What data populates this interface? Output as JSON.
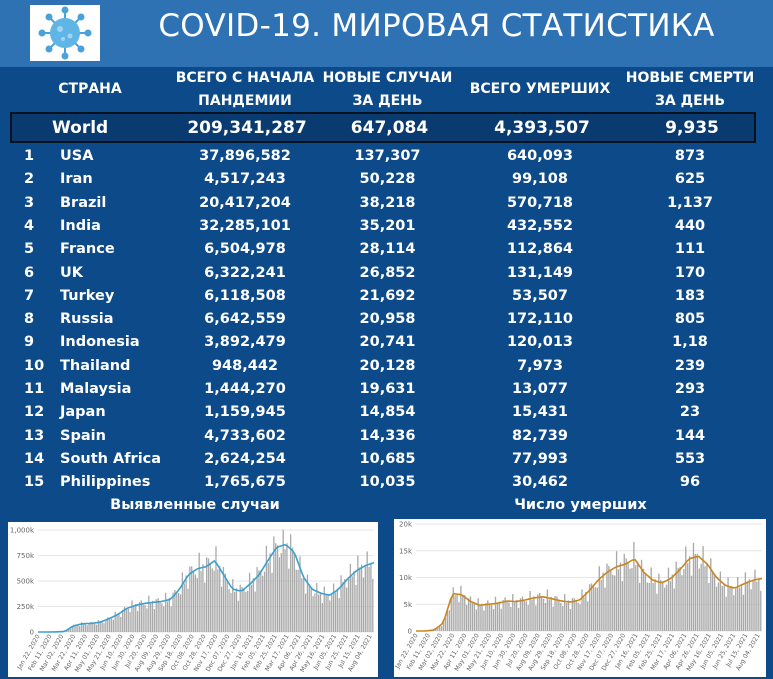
{
  "header": {
    "title": "COVID-19. МИРОВАЯ СТАТИСТИКА",
    "logo_icon": "coronavirus-icon",
    "header_color": "#2e72b4",
    "table_color": "#0d4a8a"
  },
  "table": {
    "columns": {
      "country": "СТРАНА",
      "total_line1": "ВСЕГО С НАЧАЛА",
      "total_line2": "ПАНДЕМИИ",
      "new_line1": "НОВЫЕ СЛУЧАИ",
      "new_line2": "ЗА ДЕНЬ",
      "deaths": "ВСЕГО УМЕРШИХ",
      "newd_line1": "НОВЫЕ СМЕРТИ",
      "newd_line2": "ЗА ДЕНЬ"
    },
    "world": {
      "country": "World",
      "total": "209,341,287",
      "new_cases": "647,084",
      "deaths": "4,393,507",
      "new_deaths": "9,935"
    },
    "rows": [
      {
        "rank": "1",
        "country": "USA",
        "total": "37,896,582",
        "new_cases": "137,307",
        "deaths": "640,093",
        "new_deaths": "873"
      },
      {
        "rank": "2",
        "country": "Iran",
        "total": "4,517,243",
        "new_cases": "50,228",
        "deaths": "99,108",
        "new_deaths": "625"
      },
      {
        "rank": "3",
        "country": "Brazil",
        "total": "20,417,204",
        "new_cases": "38,218",
        "deaths": "570,718",
        "new_deaths": "1,137"
      },
      {
        "rank": "4",
        "country": "India",
        "total": "32,285,101",
        "new_cases": "35,201",
        "deaths": "432,552",
        "new_deaths": "440"
      },
      {
        "rank": "5",
        "country": "France",
        "total": "6,504,978",
        "new_cases": "28,114",
        "deaths": "112,864",
        "new_deaths": "111"
      },
      {
        "rank": "6",
        "country": "UK",
        "total": "6,322,241",
        "new_cases": "26,852",
        "deaths": "131,149",
        "new_deaths": "170"
      },
      {
        "rank": "7",
        "country": "Turkey",
        "total": "6,118,508",
        "new_cases": "21,692",
        "deaths": "53,507",
        "new_deaths": "183"
      },
      {
        "rank": "8",
        "country": "Russia",
        "total": "6,642,559",
        "new_cases": "20,958",
        "deaths": "172,110",
        "new_deaths": "805"
      },
      {
        "rank": "9",
        "country": "Indonesia",
        "total": "3,892,479",
        "new_cases": "20,741",
        "deaths": "120,013",
        "new_deaths": "1,18"
      },
      {
        "rank": "10",
        "country": "Thailand",
        "total": "948,442",
        "new_cases": "20,128",
        "deaths": "7,973",
        "new_deaths": "239"
      },
      {
        "rank": "11",
        "country": "Malaysia",
        "total": "1,444,270",
        "new_cases": "19,631",
        "deaths": "13,077",
        "new_deaths": "293"
      },
      {
        "rank": "12",
        "country": "Japan",
        "total": "1,159,945",
        "new_cases": "14,854",
        "deaths": "15,431",
        "new_deaths": "23"
      },
      {
        "rank": "13",
        "country": "Spain",
        "total": "4,733,602",
        "new_cases": "14,336",
        "deaths": "82,739",
        "new_deaths": "144"
      },
      {
        "rank": "14",
        "country": "South Africa",
        "total": "2,624,254",
        "new_cases": "10,685",
        "deaths": "77,993",
        "new_deaths": "553"
      },
      {
        "rank": "15",
        "country": "Philippines",
        "total": "1,765,675",
        "new_cases": "10,035",
        "deaths": "30,462",
        "new_deaths": "96"
      }
    ]
  },
  "chart_data": [
    {
      "type": "bar",
      "title": "Выявленные случаи",
      "bar_color": "#a9a9a9",
      "line_color": "#3aa0d0",
      "ylim": [
        0,
        1000000
      ],
      "yticks": [
        {
          "value": 0,
          "label": "0"
        },
        {
          "value": 250000,
          "label": "250k"
        },
        {
          "value": 500000,
          "label": "500k"
        },
        {
          "value": 750000,
          "label": "750k"
        },
        {
          "value": 1000000,
          "label": "1,000k"
        }
      ],
      "xtick_labels": [
        "Jan 22, 2020",
        "Feb 11, 2020",
        "Mar 02, 2020",
        "Mar 22, 2020",
        "Apr 11, 2020",
        "May 01, 2020",
        "May 21, 2020",
        "Jun 10, 2020",
        "Jun 30, 2020",
        "Jul 20, 2020",
        "Aug 09, 2020",
        "Aug 29, 2020",
        "Sep 18, 2020",
        "Oct 08, 2020",
        "Oct 28, 2020",
        "Nov 17, 2020",
        "Dec 07, 2020",
        "Dec 27, 2020",
        "Jan 16, 2021",
        "Feb 05, 2021",
        "Feb 25, 2021",
        "Mar 17, 2021",
        "Apr 06, 2021",
        "Apr 26, 2021",
        "May 16, 2021",
        "Jun 05, 2021",
        "Jun 25, 2021",
        "Jul 15, 2021",
        "Aug 04, 2021"
      ],
      "trend": [
        0,
        0,
        1000,
        5000,
        60000,
        80000,
        85000,
        95000,
        130000,
        170000,
        230000,
        260000,
        280000,
        290000,
        300000,
        320000,
        420000,
        560000,
        620000,
        640000,
        700000,
        560000,
        420000,
        400000,
        470000,
        560000,
        700000,
        830000,
        860000,
        780000,
        540000,
        420000,
        380000,
        360000,
        420000,
        520000,
        600000,
        650000,
        680000
      ]
    },
    {
      "type": "bar",
      "title": "Число умерших",
      "bar_color": "#a9a9a9",
      "line_color": "#c8861e",
      "ylim": [
        0,
        20000
      ],
      "yticks": [
        {
          "value": 0,
          "label": "0"
        },
        {
          "value": 5000,
          "label": "5k"
        },
        {
          "value": 10000,
          "label": "10k"
        },
        {
          "value": 15000,
          "label": "15k"
        },
        {
          "value": 20000,
          "label": "20k"
        }
      ],
      "xtick_labels": [
        "Jan 22, 2020",
        "Feb 11, 2020",
        "Mar 02, 2020",
        "Mar 22, 2020",
        "Apr 11, 2020",
        "May 01, 2020",
        "May 21, 2020",
        "Jun 10, 2020",
        "Jun 30, 2020",
        "Jul 20, 2020",
        "Aug 09, 2020",
        "Aug 29, 2020",
        "Sep 18, 2020",
        "Oct 08, 2020",
        "Oct 28, 2020",
        "Nov 17, 2020",
        "Dec 07, 2020",
        "Dec 27, 2020",
        "Jan 16, 2021",
        "Feb 05, 2021",
        "Feb 25, 2021",
        "Mar 17, 2021",
        "Apr 06, 2021",
        "Apr 26, 2021",
        "May 16, 2021",
        "Jun 05, 2021",
        "Jun 25, 2021",
        "Jul 15, 2021",
        "Aug 04, 2021"
      ],
      "trend": [
        0,
        0,
        200,
        1500,
        7000,
        6800,
        5500,
        4800,
        5000,
        5200,
        5600,
        5500,
        5800,
        6200,
        6400,
        6000,
        5600,
        5400,
        5800,
        7500,
        9500,
        11000,
        12000,
        12500,
        13500,
        11000,
        9500,
        9000,
        9800,
        11500,
        13500,
        14000,
        12500,
        10000,
        8500,
        8000,
        8800,
        9500,
        9800
      ]
    }
  ]
}
